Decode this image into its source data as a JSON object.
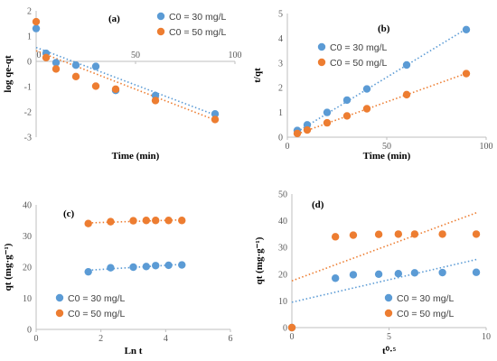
{
  "colors": {
    "series_30": "#5b9bd5",
    "series_50": "#ed7d31",
    "axis": "#bfbfbf"
  },
  "chart_data": [
    {
      "panel_label": "(a)",
      "type": "scatter",
      "xlabel": "Time (min)",
      "ylabel": "log qe-qt",
      "xlim": [
        0,
        100
      ],
      "ylim": [
        -3,
        2
      ],
      "xticks": [
        0,
        50,
        100
      ],
      "yticks": [
        -3,
        -2,
        -1,
        0,
        1,
        2
      ],
      "x_axis_at": 0,
      "legend_position": "top-right",
      "series": [
        {
          "name": "C0 = 30 mg/L",
          "x": [
            0,
            5,
            10,
            20,
            30,
            40,
            60,
            90
          ],
          "y": [
            1.3,
            0.32,
            -0.05,
            -0.15,
            -0.2,
            -1.15,
            -1.35,
            -2.08
          ],
          "trendline": [
            [
              0,
              0.55
            ],
            [
              90,
              -2.12
            ]
          ]
        },
        {
          "name": "C0 = 50 mg/L",
          "x": [
            0,
            5,
            10,
            20,
            30,
            40,
            60,
            90
          ],
          "y": [
            1.57,
            0.15,
            -0.3,
            -0.6,
            -0.98,
            -1.1,
            -1.55,
            -2.3
          ],
          "trendline": [
            [
              0,
              0.42
            ],
            [
              90,
              -2.32
            ]
          ]
        }
      ]
    },
    {
      "panel_label": "(b)",
      "type": "scatter",
      "xlabel": "Time (min)",
      "ylabel": "t/qt",
      "xlim": [
        0,
        100
      ],
      "ylim": [
        0,
        5
      ],
      "xticks": [
        0,
        50,
        100
      ],
      "yticks": [
        0,
        1,
        2,
        3,
        4,
        5
      ],
      "x_axis_at": 0,
      "legend_position": "top-left",
      "series": [
        {
          "name": "C0 = 30 mg/L",
          "x": [
            5,
            10,
            20,
            30,
            40,
            60,
            90
          ],
          "y": [
            0.27,
            0.5,
            1.0,
            1.5,
            1.95,
            2.92,
            4.35
          ],
          "trendline": [
            [
              5,
              0.22
            ],
            [
              90,
              4.38
            ]
          ]
        },
        {
          "name": "C0 = 50 mg/L",
          "x": [
            5,
            10,
            20,
            30,
            40,
            60,
            90
          ],
          "y": [
            0.15,
            0.29,
            0.58,
            0.86,
            1.15,
            1.72,
            2.57
          ],
          "trendline": [
            [
              5,
              0.13
            ],
            [
              90,
              2.58
            ]
          ]
        }
      ]
    },
    {
      "panel_label": "(c)",
      "type": "scatter",
      "xlabel": "Ln t",
      "ylabel": "qt (mg·g⁻¹)",
      "xlim": [
        0,
        6
      ],
      "ylim": [
        0,
        40
      ],
      "xticks": [
        0,
        2,
        4,
        6
      ],
      "yticks": [
        0,
        10,
        20,
        30,
        40
      ],
      "x_axis_at": 0,
      "legend_position": "bottom-left",
      "series": [
        {
          "name": "C0 = 30 mg/L",
          "x": [
            1.61,
            2.3,
            3.0,
            3.4,
            3.69,
            4.09,
            4.5
          ],
          "y": [
            18.5,
            19.8,
            20.0,
            20.2,
            20.5,
            20.6,
            20.7
          ],
          "trendline": [
            [
              1.61,
              19.0
            ],
            [
              4.5,
              20.9
            ]
          ]
        },
        {
          "name": "C0 = 50 mg/L",
          "x": [
            1.61,
            2.3,
            3.0,
            3.4,
            3.69,
            4.09,
            4.5
          ],
          "y": [
            34.0,
            34.6,
            34.9,
            35.0,
            35.0,
            35.0,
            35.0
          ],
          "trendline": [
            [
              1.61,
              34.2
            ],
            [
              4.5,
              35.2
            ]
          ]
        }
      ]
    },
    {
      "panel_label": "(d)",
      "type": "scatter",
      "xlabel": "t⁰·⁵",
      "ylabel": "qt (mg·g⁻¹)",
      "xlim": [
        0,
        10
      ],
      "ylim": [
        0,
        50
      ],
      "xticks": [
        0,
        5,
        10
      ],
      "yticks": [
        0,
        10,
        20,
        30,
        40,
        50
      ],
      "x_axis_at": 0,
      "legend_position": "bottom-right",
      "series": [
        {
          "name": "C0 = 30 mg/L",
          "x": [
            0,
            2.24,
            3.16,
            4.47,
            5.48,
            6.32,
            7.75,
            9.49
          ],
          "y": [
            0,
            18.5,
            19.8,
            20.0,
            20.2,
            20.5,
            20.6,
            20.7
          ],
          "trendline": [
            [
              0,
              9.5
            ],
            [
              9.5,
              25.5
            ]
          ]
        },
        {
          "name": "C0 = 50 mg/L",
          "x": [
            0,
            2.24,
            3.16,
            4.47,
            5.48,
            6.32,
            7.75,
            9.49
          ],
          "y": [
            0,
            34.0,
            34.6,
            34.9,
            35.0,
            35.0,
            35.0,
            35.0
          ],
          "trendline": [
            [
              0,
              17.5
            ],
            [
              9.5,
              43.0
            ]
          ]
        }
      ]
    }
  ]
}
